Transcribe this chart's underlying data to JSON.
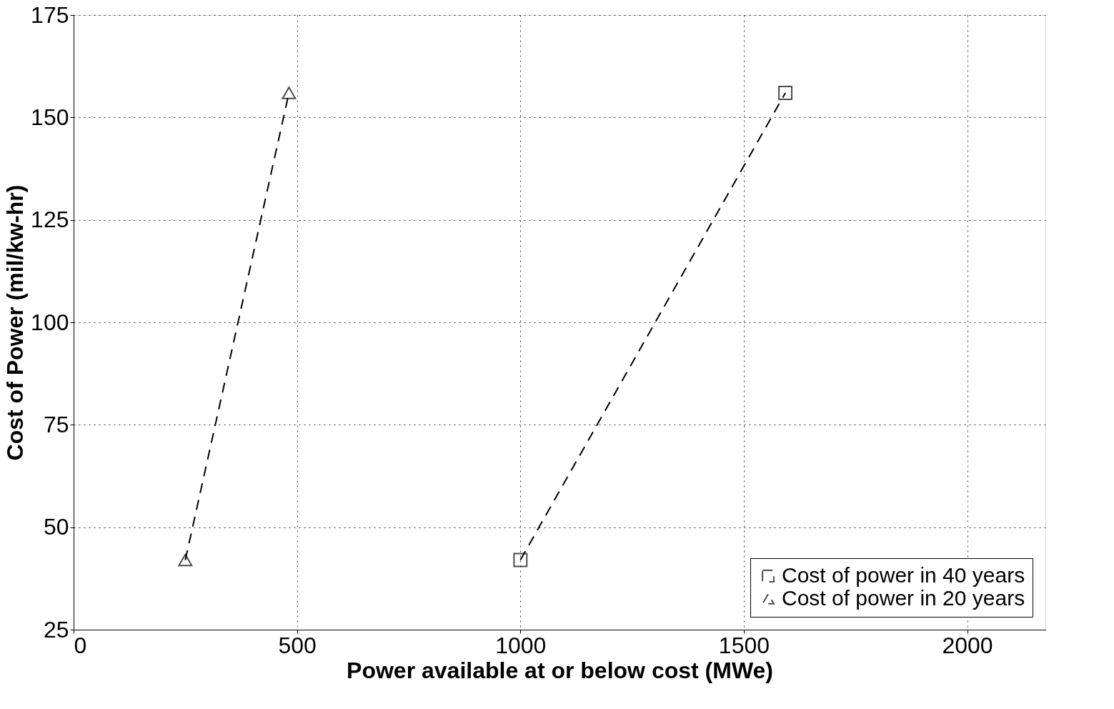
{
  "chart_data": {
    "type": "line",
    "xlabel": "Power available at or below cost (MWe)",
    "ylabel": "Cost of Power (mil/kw-hr)",
    "series": [
      {
        "name": "Cost of power in 40 years",
        "color": "#000000",
        "x": [
          1000,
          1593
        ],
        "values": [
          42,
          156
        ],
        "marker": "square",
        "line_style": "dashed"
      },
      {
        "name": "Cost of power in 20 years",
        "color": "#000000",
        "x": [
          250,
          482
        ],
        "values": [
          42,
          156
        ],
        "marker": "triangle",
        "line_style": "dashed"
      }
    ],
    "xlim": [
      0,
      2175
    ],
    "xticks": [
      0,
      500,
      1000,
      1500,
      2000
    ],
    "ylim": [
      25,
      175
    ],
    "yticks": [
      25,
      50,
      75,
      100,
      125,
      150,
      175
    ],
    "grid": true,
    "legend": "bottom right"
  }
}
